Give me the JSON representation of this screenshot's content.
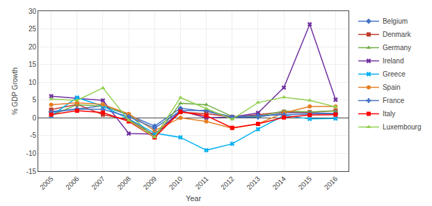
{
  "chart_data": {
    "type": "line",
    "xlabel": "Year",
    "ylabel": "% GDP Growth",
    "categories": [
      "2005",
      "2006",
      "2007",
      "2008",
      "2009",
      "2010",
      "2011",
      "2012",
      "2013",
      "2014",
      "2015",
      "2016"
    ],
    "series": [
      {
        "name": "Belgium",
        "color": "#4472C4",
        "marker": "diamond",
        "values": [
          1.8,
          2.5,
          3.4,
          0.8,
          -2.3,
          2.7,
          1.8,
          0.1,
          0.2,
          1.4,
          1.5,
          1.2
        ]
      },
      {
        "name": "Denmark",
        "color": "#C0392B",
        "marker": "square",
        "values": [
          2.3,
          3.8,
          0.9,
          -0.5,
          -4.9,
          1.6,
          1.2,
          0.2,
          0.9,
          1.7,
          1.6,
          2.0
        ]
      },
      {
        "name": "Germany",
        "color": "#70AD47",
        "marker": "triangle",
        "values": [
          0.7,
          3.7,
          3.3,
          1.1,
          -5.6,
          4.1,
          3.7,
          0.4,
          0.4,
          1.9,
          1.7,
          1.9
        ]
      },
      {
        "name": "Ireland",
        "color": "#7030A0",
        "marker": "x",
        "values": [
          6.1,
          5.5,
          4.9,
          -4.4,
          -4.6,
          2.0,
          0.0,
          0.2,
          1.4,
          8.5,
          26.3,
          5.1
        ]
      },
      {
        "name": "Greece",
        "color": "#00B0F0",
        "marker": "x",
        "values": [
          0.6,
          5.7,
          3.3,
          -0.3,
          -4.3,
          -5.5,
          -9.1,
          -7.3,
          -3.2,
          0.7,
          -0.3,
          -0.2
        ]
      },
      {
        "name": "Spain",
        "color": "#E67E22",
        "marker": "circle",
        "values": [
          3.7,
          4.2,
          3.8,
          1.1,
          -3.6,
          0.0,
          -1.0,
          -2.9,
          -1.7,
          1.4,
          3.2,
          3.2
        ]
      },
      {
        "name": "France",
        "color": "#4472C4",
        "marker": "plus",
        "values": [
          1.6,
          2.4,
          2.4,
          0.3,
          -2.9,
          2.0,
          2.1,
          0.2,
          0.6,
          0.9,
          1.1,
          1.2
        ]
      },
      {
        "name": "Italy",
        "color": "#FF0000",
        "marker": "square",
        "values": [
          0.9,
          2.0,
          1.5,
          -1.0,
          -5.5,
          1.7,
          0.6,
          -2.8,
          -1.7,
          0.1,
          0.8,
          0.9
        ]
      },
      {
        "name": "Luxembourg",
        "color": "#92D050",
        "marker": "triangle",
        "values": [
          5.3,
          4.9,
          8.4,
          -0.7,
          -5.4,
          5.7,
          2.6,
          -0.4,
          4.3,
          5.8,
          4.9,
          3.1
        ]
      }
    ],
    "ylim": [
      -15,
      30
    ],
    "yticks": [
      -15,
      -10,
      -5,
      0,
      5,
      10,
      15,
      20,
      25,
      30
    ],
    "grid": true,
    "legend": "right"
  }
}
